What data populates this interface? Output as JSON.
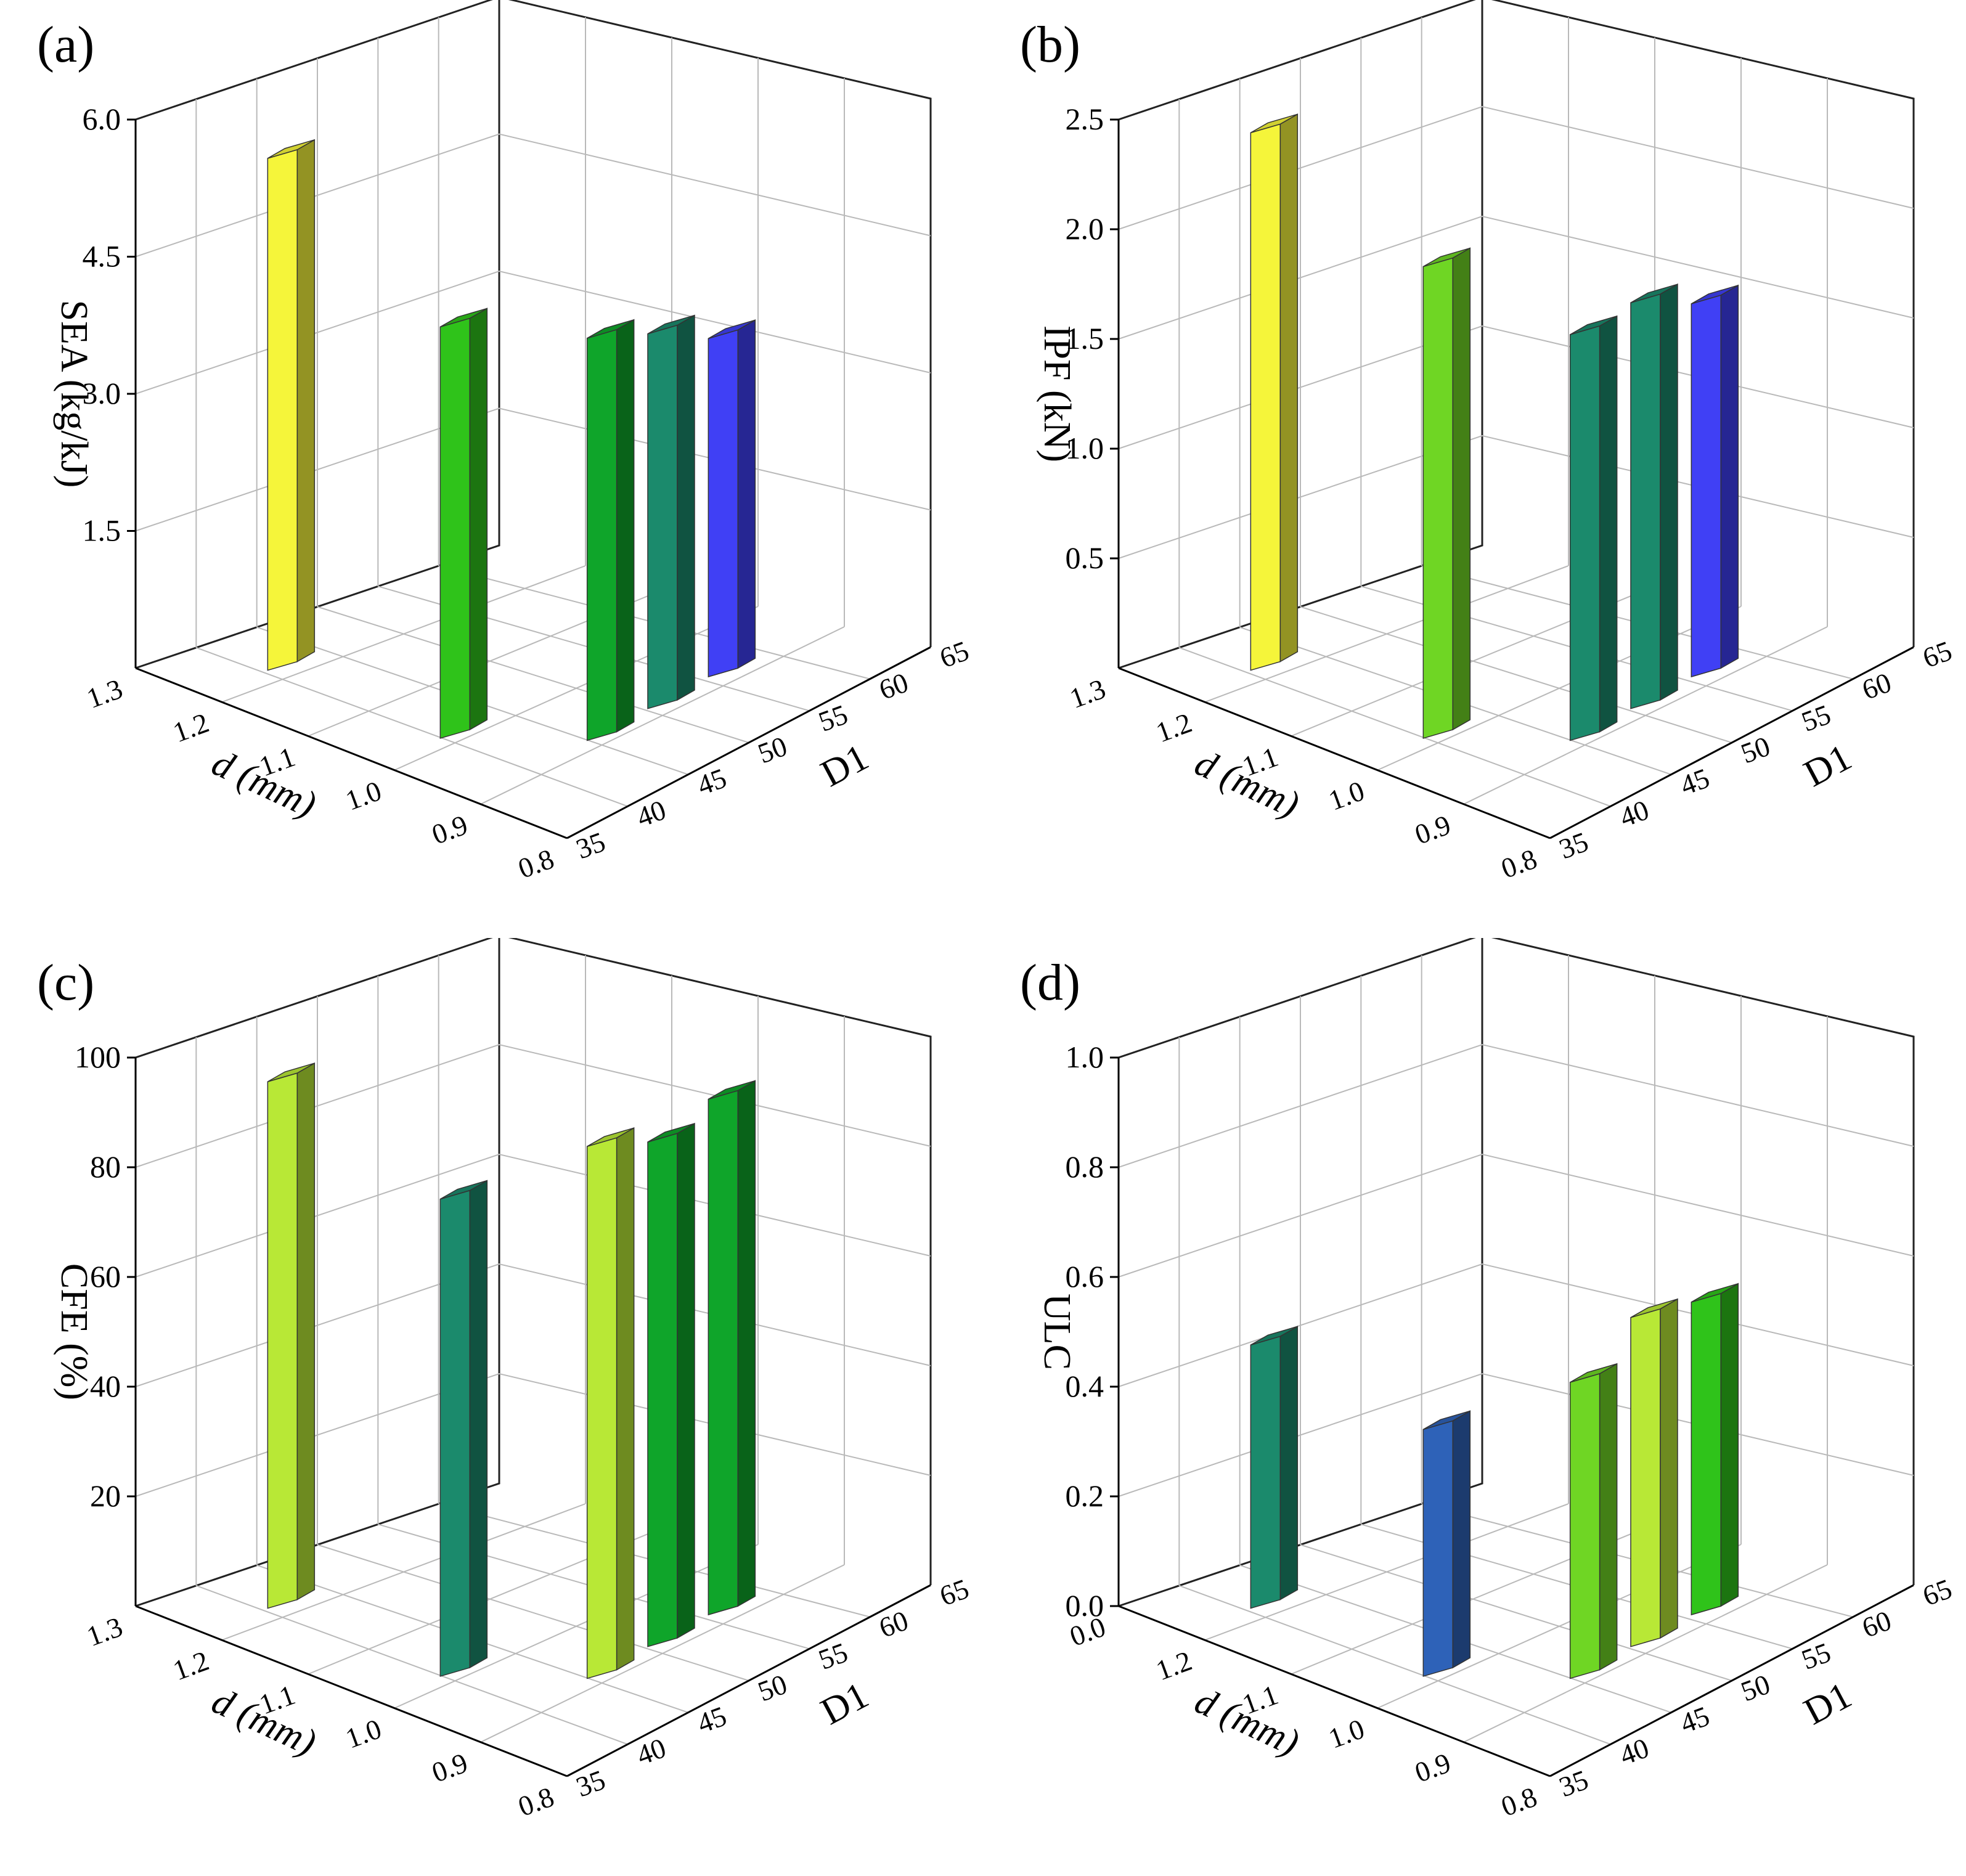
{
  "figure": {
    "description_hidden": false
  },
  "chart_data": [
    {
      "panel": "(a)",
      "type": "bar3d",
      "ylabel": "SEA (kg/kJ)",
      "xlabel": "d (mm)",
      "zlabel": "D1",
      "x_ticks": [
        "1.3",
        "1.2",
        "1.1",
        "1.0",
        "0.9",
        "0.8"
      ],
      "z_ticks": [
        "35",
        "40",
        "45",
        "50",
        "55",
        "60",
        "65"
      ],
      "y_ticks": [
        "1.5",
        "3.0",
        "4.5",
        "6.0"
      ],
      "ylim": [
        0,
        6
      ],
      "ytick_values": [
        1.5,
        3.0,
        4.5,
        6.0
      ],
      "bars": [
        {
          "d": 1.2,
          "D": 40,
          "value": 5.6,
          "color": "#f5f53a"
        },
        {
          "d": 1.0,
          "D": 40,
          "value": 4.5,
          "color": "#2fc31a"
        },
        {
          "d": 0.9,
          "D": 45,
          "value": 4.4,
          "color": "#0fa52a"
        },
        {
          "d": 0.9,
          "D": 50,
          "value": 4.1,
          "color": "#1b8a6c"
        },
        {
          "d": 0.9,
          "D": 55,
          "value": 3.7,
          "color": "#4040f5"
        }
      ]
    },
    {
      "panel": "(b)",
      "type": "bar3d",
      "ylabel": "IPF (kN)",
      "xlabel": "d (mm)",
      "zlabel": "D1",
      "x_ticks": [
        "1.3",
        "1.2",
        "1.1",
        "1.0",
        "0.9",
        "0.8"
      ],
      "z_ticks": [
        "35",
        "40",
        "45",
        "50",
        "55",
        "60",
        "65"
      ],
      "y_ticks": [
        "0.5",
        "1.0",
        "1.5",
        "2.0",
        "2.5"
      ],
      "ylim": [
        0,
        2.5
      ],
      "ytick_values": [
        0.5,
        1.0,
        1.5,
        2.0,
        2.5
      ],
      "bars": [
        {
          "d": 1.2,
          "D": 40,
          "value": 2.45,
          "color": "#f5f53a"
        },
        {
          "d": 1.0,
          "D": 40,
          "value": 2.15,
          "color": "#6fd624"
        },
        {
          "d": 0.9,
          "D": 45,
          "value": 1.85,
          "color": "#1b8a6c"
        },
        {
          "d": 0.9,
          "D": 50,
          "value": 1.85,
          "color": "#1b8a6c"
        },
        {
          "d": 0.9,
          "D": 55,
          "value": 1.7,
          "color": "#4040f5"
        }
      ]
    },
    {
      "panel": "(c)",
      "type": "bar3d",
      "ylabel": "CFE (%)",
      "xlabel": "d (mm)",
      "zlabel": "D1",
      "x_ticks": [
        "1.3",
        "1.2",
        "1.1",
        "1.0",
        "0.9",
        "0.8"
      ],
      "z_ticks": [
        "35",
        "40",
        "45",
        "50",
        "55",
        "60",
        "65"
      ],
      "y_ticks": [
        "20",
        "40",
        "60",
        "80",
        "100"
      ],
      "ylim": [
        0,
        100
      ],
      "ytick_values": [
        20,
        40,
        60,
        80,
        100
      ],
      "bars": [
        {
          "d": 1.2,
          "D": 40,
          "value": 96,
          "color": "#b8e836"
        },
        {
          "d": 1.0,
          "D": 40,
          "value": 87,
          "color": "#1b8a6c"
        },
        {
          "d": 0.9,
          "D": 45,
          "value": 97,
          "color": "#b8e836"
        },
        {
          "d": 0.9,
          "D": 50,
          "value": 92,
          "color": "#0fa52a"
        },
        {
          "d": 0.9,
          "D": 55,
          "value": 94,
          "color": "#0fa52a"
        }
      ]
    },
    {
      "panel": "(d)",
      "type": "bar3d",
      "ylabel": "ULC",
      "xlabel": "d (mm)",
      "zlabel": "D1",
      "x_ticks": [
        "0.0",
        "1.2",
        "1.1",
        "1.0",
        "0.9",
        "0.8"
      ],
      "z_ticks": [
        "35",
        "40",
        "45",
        "50",
        "55",
        "60",
        "65"
      ],
      "y_ticks": [
        "0.0",
        "0.2",
        "0.4",
        "0.6",
        "0.8",
        "1.0"
      ],
      "ylim": [
        0,
        1.0
      ],
      "ytick_values": [
        0.0,
        0.2,
        0.4,
        0.6,
        0.8,
        1.0
      ],
      "bars": [
        {
          "d": 1.2,
          "D": 40,
          "value": 0.48,
          "color": "#1b8a6c"
        },
        {
          "d": 1.0,
          "D": 40,
          "value": 0.45,
          "color": "#2e62b8"
        },
        {
          "d": 0.9,
          "D": 45,
          "value": 0.54,
          "color": "#6fd624"
        },
        {
          "d": 0.9,
          "D": 50,
          "value": 0.6,
          "color": "#b8e836"
        },
        {
          "d": 0.9,
          "D": 55,
          "value": 0.57,
          "color": "#2fc31a"
        }
      ]
    }
  ]
}
